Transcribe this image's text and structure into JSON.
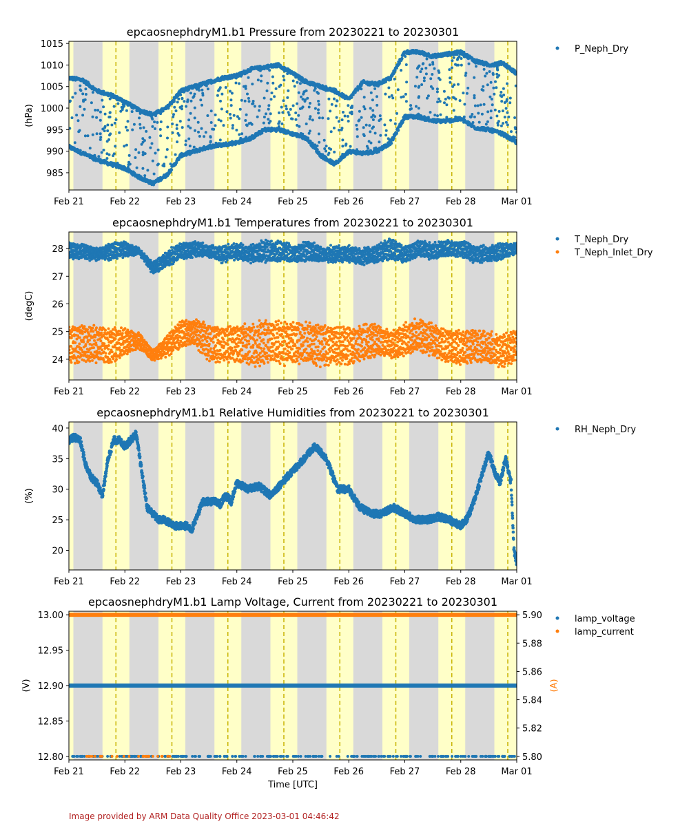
{
  "footer": "Image provided by ARM Data Quality Office 2023-03-01 04:46:42",
  "x_label": "Time [UTC]",
  "x_ticks": [
    "Feb 21",
    "Feb 22",
    "Feb 23",
    "Feb 24",
    "Feb 25",
    "Feb 26",
    "Feb 27",
    "Feb 28",
    "Mar 01"
  ],
  "colors": {
    "blue": "#1f77b4",
    "orange": "#ff7f0e",
    "night": "#d9d9d9",
    "day": "#ffffc8",
    "noon": "#c8b400"
  },
  "chart_data": [
    {
      "type": "scatter",
      "title": "epcaosnephdryM1.b1 Pressure from 20230221 to 20230301",
      "xlabel": "",
      "ylabel": "(hPa)",
      "xlim": [
        "2023-02-21",
        "2023-03-01"
      ],
      "ylim": [
        981,
        1015.5
      ],
      "yticks": [
        985,
        990,
        995,
        1000,
        1005,
        1010,
        1015
      ],
      "legend": "right",
      "series": [
        {
          "name": "P_Neph_Dry",
          "color": "#1f77b4",
          "upper": {
            "days": [
              0,
              0.25,
              0.5,
              0.75,
              1,
              1.25,
              1.5,
              1.75,
              2,
              2.25,
              2.5,
              2.75,
              3,
              3.25,
              3.5,
              3.75,
              4,
              4.25,
              4.5,
              4.75,
              5,
              5.25,
              5.5,
              5.75,
              6,
              6.25,
              6.5,
              6.75,
              7,
              7.25,
              7.5,
              7.75,
              8
            ],
            "values": [
              1007,
              1006.5,
              1004,
              1003,
              1001.5,
              999.5,
              998.5,
              1000,
              1004,
              1005,
              1006,
              1007,
              1007.5,
              1009,
              1009.5,
              1010,
              1008,
              1006,
              1005,
              1004,
              1002,
              1006,
              1005.5,
              1007,
              1013,
              1013,
              1012,
              1012.5,
              1013,
              1011,
              1010,
              1010.5,
              1008
            ]
          },
          "lower": {
            "days": [
              0,
              0.25,
              0.5,
              0.75,
              1,
              1.25,
              1.5,
              1.75,
              2,
              2.25,
              2.5,
              2.75,
              3,
              3.25,
              3.5,
              3.75,
              4,
              4.25,
              4.5,
              4.75,
              5,
              5.25,
              5.5,
              5.75,
              6,
              6.25,
              6.5,
              6.75,
              7,
              7.25,
              7.5,
              7.75,
              8
            ],
            "values": [
              991,
              989.5,
              988,
              987,
              986,
              984,
              982.5,
              984.5,
              989,
              990,
              991,
              991.5,
              992,
              993,
              995,
              995,
              994,
              993,
              989,
              987,
              990,
              989.5,
              990,
              992,
              998,
              998,
              997,
              997,
              997.5,
              995.5,
              995,
              994,
              992
            ]
          }
        }
      ]
    },
    {
      "type": "scatter",
      "title": "epcaosnephdryM1.b1 Temperatures from 20230221 to 20230301",
      "xlabel": "",
      "ylabel": "(degC)",
      "xlim": [
        "2023-02-21",
        "2023-03-01"
      ],
      "ylim": [
        23.25,
        28.6
      ],
      "yticks": [
        24,
        25,
        26,
        27,
        28
      ],
      "legend": "right",
      "series": [
        {
          "name": "T_Neph_Dry",
          "color": "#1f77b4",
          "days": [
            0,
            0.25,
            0.5,
            0.75,
            1,
            1.25,
            1.5,
            1.75,
            2,
            2.25,
            2.5,
            2.75,
            3,
            3.25,
            3.5,
            3.75,
            4,
            4.25,
            4.5,
            4.75,
            5,
            5.25,
            5.5,
            5.75,
            6,
            6.25,
            6.5,
            6.75,
            7,
            7.25,
            7.5,
            7.75,
            8
          ],
          "center": [
            27.9,
            27.9,
            27.8,
            27.9,
            28,
            27.9,
            27.3,
            27.6,
            27.9,
            28,
            27.9,
            27.8,
            27.9,
            27.8,
            27.9,
            27.9,
            27.8,
            27.9,
            27.8,
            27.8,
            27.8,
            27.7,
            27.8,
            28,
            27.8,
            28,
            27.9,
            28,
            28,
            27.8,
            27.8,
            27.9,
            28
          ],
          "amp": [
            0.3,
            0.3,
            0.2,
            0.3,
            0.3,
            0.1,
            0.2,
            0.3,
            0.3,
            0.3,
            0.2,
            0.3,
            0.3,
            0.3,
            0.4,
            0.4,
            0.3,
            0.4,
            0.3,
            0.3,
            0.3,
            0.3,
            0.3,
            0.4,
            0.3,
            0.3,
            0.3,
            0.3,
            0.3,
            0.3,
            0.3,
            0.3,
            0.2
          ]
        },
        {
          "name": "T_Neph_Inlet_Dry",
          "color": "#ff7f0e",
          "days": [
            0,
            0.25,
            0.5,
            0.75,
            1,
            1.25,
            1.5,
            1.75,
            2,
            2.25,
            2.5,
            2.75,
            3,
            3.25,
            3.5,
            3.75,
            4,
            4.25,
            4.5,
            4.75,
            5,
            5.25,
            5.5,
            5.75,
            6,
            6.25,
            6.5,
            6.75,
            7,
            7.25,
            7.5,
            7.75,
            8
          ],
          "center": [
            24.5,
            24.6,
            24.5,
            24.5,
            24.6,
            24.7,
            24.1,
            24.5,
            24.9,
            25,
            24.6,
            24.5,
            24.6,
            24.5,
            24.6,
            24.6,
            24.6,
            24.6,
            24.5,
            24.5,
            24.5,
            24.6,
            24.7,
            24.5,
            24.7,
            24.9,
            24.7,
            24.5,
            24.4,
            24.5,
            24.4,
            24.3,
            24.5
          ],
          "amp": [
            0.7,
            0.7,
            0.7,
            0.7,
            0.5,
            0.3,
            0.2,
            0.4,
            0.5,
            0.5,
            0.7,
            0.7,
            0.7,
            0.8,
            0.8,
            0.8,
            0.8,
            0.8,
            0.8,
            0.7,
            0.7,
            0.7,
            0.6,
            0.5,
            0.6,
            0.6,
            0.6,
            0.6,
            0.7,
            0.6,
            0.6,
            0.6,
            0.6
          ]
        }
      ]
    },
    {
      "type": "scatter",
      "title": "epcaosnephdryM1.b1 Relative Humidities from 20230221 to 20230301",
      "xlabel": "",
      "ylabel": "(%)",
      "xlim": [
        "2023-02-21",
        "2023-03-01"
      ],
      "ylim": [
        16.8,
        41
      ],
      "yticks": [
        20,
        25,
        30,
        35,
        40
      ],
      "legend": "right",
      "series": [
        {
          "name": "RH_Neph_Dry",
          "color": "#1f77b4",
          "days": [
            0,
            0.1,
            0.2,
            0.3,
            0.4,
            0.5,
            0.6,
            0.7,
            0.8,
            0.9,
            1,
            1.1,
            1.2,
            1.3,
            1.4,
            1.5,
            1.6,
            1.7,
            1.8,
            1.9,
            2,
            2.1,
            2.2,
            2.3,
            2.4,
            2.5,
            2.6,
            2.7,
            2.8,
            2.9,
            3,
            3.2,
            3.4,
            3.6,
            3.8,
            4,
            4.2,
            4.4,
            4.6,
            4.8,
            5,
            5.2,
            5.4,
            5.6,
            5.8,
            6,
            6.2,
            6.4,
            6.6,
            6.8,
            7,
            7.1,
            7.2,
            7.3,
            7.4,
            7.5,
            7.6,
            7.7,
            7.8,
            7.85,
            7.9,
            7.95,
            8
          ],
          "values": [
            38,
            38.5,
            38,
            34,
            32,
            31,
            29,
            35,
            38,
            38,
            37,
            38,
            39,
            33,
            27,
            26,
            25,
            25,
            24.5,
            24,
            24,
            24,
            23.5,
            26,
            28,
            28,
            28,
            27.5,
            29,
            28,
            31,
            30,
            30.5,
            29,
            31,
            33,
            35,
            37,
            35,
            30,
            30,
            27,
            26,
            26,
            27,
            26,
            25,
            25,
            25.5,
            25,
            24,
            25,
            27,
            30,
            33,
            36,
            33,
            31,
            35,
            33,
            31,
            20,
            18
          ]
        }
      ]
    },
    {
      "type": "scatter",
      "title": "epcaosnephdryM1.b1 Lamp Voltage, Current from 20230221 to 20230301",
      "xlabel": "Time [UTC]",
      "ylabel": "(V)",
      "y2label": "(A)",
      "xlim": [
        "2023-02-21",
        "2023-03-01"
      ],
      "ylim": [
        12.795,
        13.005
      ],
      "y2lim": [
        5.7975,
        5.9025
      ],
      "yticks": [
        12.8,
        12.85,
        12.9,
        12.95,
        13.0
      ],
      "y2ticks": [
        5.8,
        5.82,
        5.84,
        5.86,
        5.88,
        5.9
      ],
      "legend": "right",
      "series": [
        {
          "name": "lamp_voltage",
          "color": "#1f77b4",
          "axis": "left",
          "main_value": 12.9,
          "dropout_value": 12.8
        },
        {
          "name": "lamp_current",
          "color": "#ff7f0e",
          "axis": "right",
          "main_value": 5.9,
          "dropout_value": 5.8
        }
      ]
    }
  ]
}
